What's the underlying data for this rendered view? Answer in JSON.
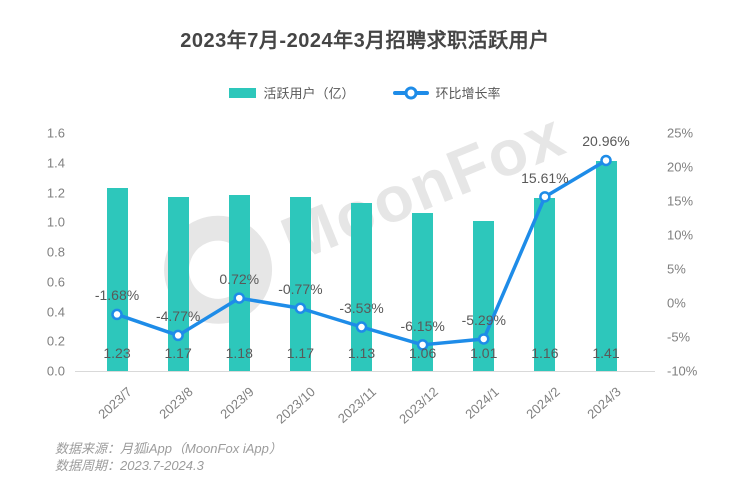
{
  "title": "2023年7月-2024年3月招聘求职活跃用户",
  "watermark": "MoonFox",
  "legend": [
    {
      "label": "活跃用户（亿）",
      "type": "bar"
    },
    {
      "label": "环比增长率",
      "type": "line"
    }
  ],
  "footer": {
    "source": "数据来源：月狐iApp（MoonFox iApp）",
    "period": "数据周期：2023.7-2024.3"
  },
  "colors": {
    "bar": "#2dc7bb",
    "line": "#1e8ce8",
    "marker_fill": "#ffffff",
    "axis_text": "#808080",
    "label_text": "#595959",
    "baseline": "#d9d9d9",
    "watermark": "#e2e2e2"
  },
  "chart_data": {
    "type": "bar",
    "subtype": "bar+line combo",
    "title": "2023年7月-2024年3月招聘求职活跃用户",
    "categories": [
      "2023/7",
      "2023/8",
      "2023/9",
      "2023/10",
      "2023/11",
      "2023/12",
      "2024/1",
      "2024/2",
      "2024/3"
    ],
    "series": [
      {
        "name": "活跃用户（亿）",
        "type": "bar",
        "axis": "left",
        "values": [
          1.23,
          1.17,
          1.18,
          1.17,
          1.13,
          1.06,
          1.01,
          1.16,
          1.41
        ],
        "value_labels": [
          "1.23",
          "1.17",
          "1.18",
          "1.17",
          "1.13",
          "1.06",
          "1.01",
          "1.16",
          "1.41"
        ]
      },
      {
        "name": "环比增长率",
        "type": "line",
        "axis": "right",
        "values": [
          -1.68,
          -4.77,
          0.72,
          -0.77,
          -3.53,
          -6.15,
          -5.29,
          15.61,
          20.96
        ],
        "value_labels": [
          "-1.68%",
          "-4.77%",
          "0.72%",
          "-0.77%",
          "-3.53%",
          "-6.15%",
          "-5.29%",
          "15.61%",
          "20.96%"
        ]
      }
    ],
    "left_axis": {
      "min": 0,
      "max": 1.6,
      "step": 0.2,
      "ticks": [
        "1.6",
        "1.4",
        "1.2",
        "1.0",
        "0.8",
        "0.6",
        "0.4",
        "0.2",
        "0.0"
      ]
    },
    "right_axis": {
      "min": -10,
      "max": 25,
      "step": 5,
      "ticks": [
        "25%",
        "20%",
        "15%",
        "10%",
        "5%",
        "0%",
        "-5%",
        "-10%"
      ]
    },
    "grid": false,
    "legend_position": "top",
    "x_label_rotation": -42
  }
}
